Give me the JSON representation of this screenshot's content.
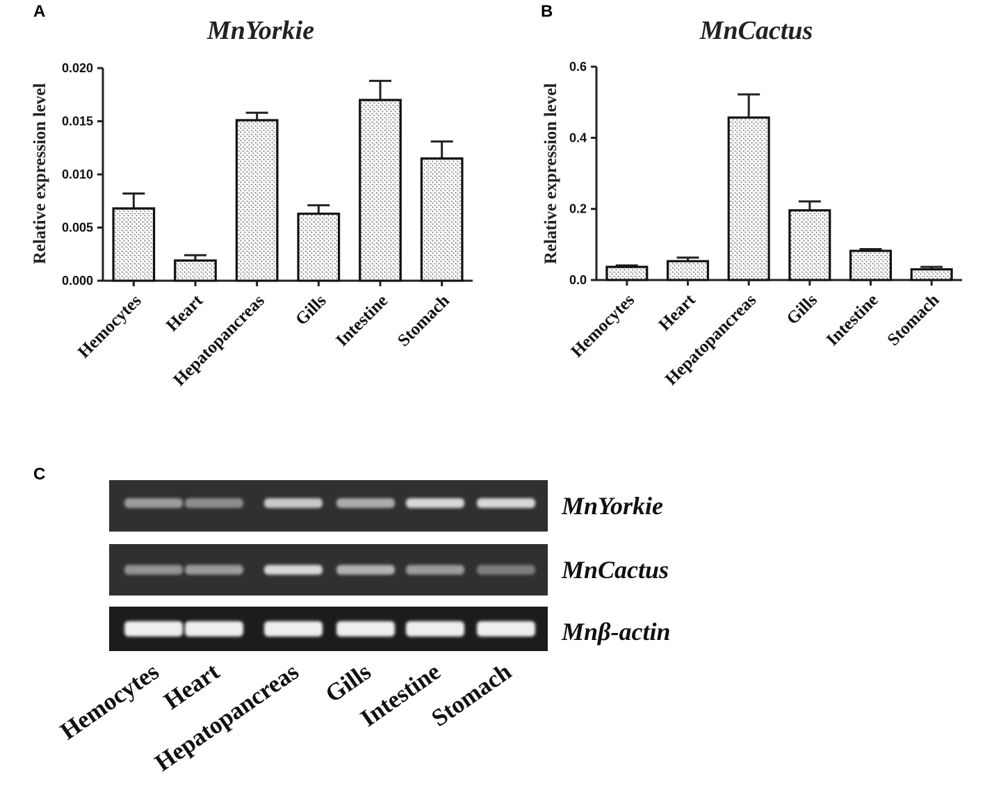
{
  "panels": {
    "a_letter": "A",
    "b_letter": "B",
    "c_letter": "C"
  },
  "colors": {
    "bar_fill_pattern": "stippled grey on white",
    "bar_stroke": "#111111",
    "gel_background": "#2a2a2a",
    "band": "#e8e8e8"
  },
  "chart_data": [
    {
      "type": "bar",
      "title": "MnYorkie",
      "ylabel": "Relative expression level",
      "xlabel": "",
      "categories": [
        "Hemocytes",
        "Heart",
        "Hepatopancreas",
        "Gills",
        "Intestine",
        "Stomach"
      ],
      "values": [
        0.0068,
        0.0019,
        0.0151,
        0.0063,
        0.017,
        0.0115
      ],
      "errors": [
        0.0014,
        0.0005,
        0.0007,
        0.0008,
        0.0018,
        0.0016
      ],
      "ylim": [
        0,
        0.02
      ],
      "yticks": [
        "0.000",
        "0.005",
        "0.010",
        "0.015",
        "0.020"
      ],
      "ytick_values": [
        0,
        0.005,
        0.01,
        0.015,
        0.02
      ],
      "grid": false,
      "legend": "none"
    },
    {
      "type": "bar",
      "title": "MnCactus",
      "ylabel": "Relative expression level",
      "xlabel": "",
      "categories": [
        "Hemocytes",
        "Heart",
        "Hepatopancreas",
        "Gills",
        "Intestine",
        "Stomach"
      ],
      "values": [
        0.037,
        0.053,
        0.457,
        0.196,
        0.082,
        0.03
      ],
      "errors": [
        0.004,
        0.01,
        0.065,
        0.025,
        0.005,
        0.007
      ],
      "ylim": [
        0,
        0.6
      ],
      "yticks": [
        "0.0",
        "0.2",
        "0.4",
        "0.6"
      ],
      "ytick_values": [
        0,
        0.2,
        0.4,
        0.6
      ],
      "grid": false,
      "legend": "none"
    }
  ],
  "gel": {
    "lanes": [
      "Hemocytes",
      "Heart",
      "Hepatopancreas",
      "Gills",
      "Intestine",
      "Stomach"
    ],
    "rows": [
      {
        "gene": "MnYorkie",
        "intensity": [
          0.45,
          0.35,
          0.75,
          0.55,
          0.85,
          0.85
        ]
      },
      {
        "gene": "MnCactus",
        "intensity": [
          0.4,
          0.45,
          0.85,
          0.6,
          0.45,
          0.25
        ]
      },
      {
        "gene": "Mnβ-actin",
        "intensity": [
          1.0,
          1.0,
          1.0,
          1.0,
          1.0,
          1.0
        ]
      }
    ]
  }
}
